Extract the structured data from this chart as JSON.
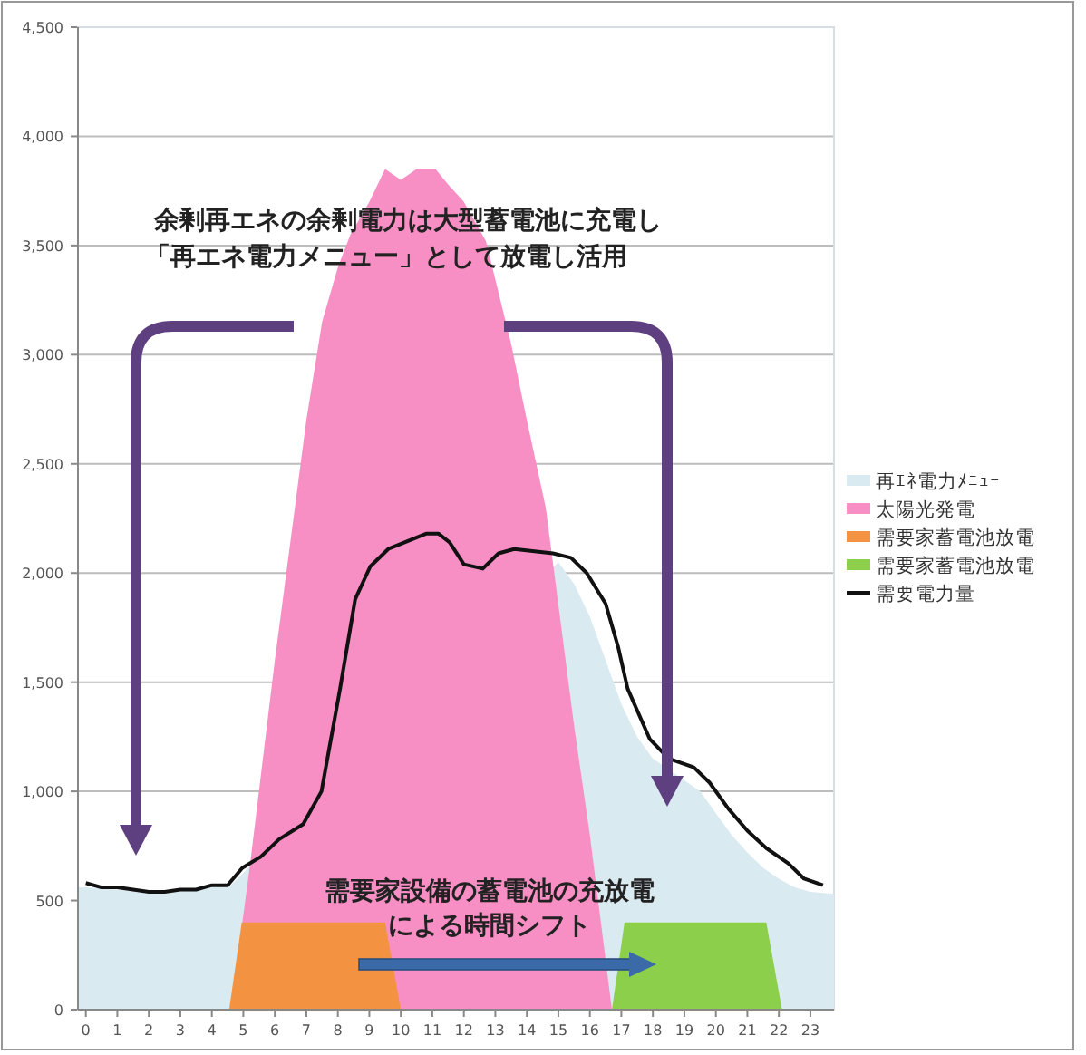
{
  "chart_data": {
    "type": "area",
    "xlim": [
      -0.25,
      23.75
    ],
    "ylim": [
      0,
      4500
    ],
    "xticks": [
      0,
      1,
      2,
      3,
      4,
      5,
      6,
      7,
      8,
      9,
      10,
      11,
      12,
      13,
      14,
      15,
      16,
      17,
      18,
      19,
      20,
      21,
      22,
      23
    ],
    "yticks": [
      0,
      {
        "value": 500,
        "label": "500"
      },
      {
        "value": 1000,
        "label": "1,000"
      },
      {
        "value": 1500,
        "label": "1,500"
      },
      {
        "value": 2000,
        "label": "2,000"
      },
      {
        "value": 2500,
        "label": "2,500"
      },
      {
        "value": 3000,
        "label": "3,000"
      },
      {
        "value": 3500,
        "label": "3,500"
      },
      {
        "value": 4000,
        "label": "4,000"
      },
      {
        "value": 4500,
        "label": "4,500"
      }
    ],
    "grid": "y",
    "legend": "right",
    "series": [
      {
        "name": "再ｴﾈ電力ﾒﾆｭｰ",
        "color": "#daeaf1",
        "x": [
          -0.25,
          0,
          1,
          2,
          3,
          4,
          4.6,
          15,
          15.5,
          16,
          16.5,
          17,
          17.5,
          18,
          18.5,
          19,
          19.5,
          20,
          20.5,
          21,
          21.5,
          22,
          22.5,
          23,
          23.75
        ],
        "values": [
          560,
          560,
          550,
          540,
          550,
          560,
          570,
          2050,
          1950,
          1800,
          1600,
          1400,
          1250,
          1150,
          1100,
          1050,
          1000,
          900,
          800,
          720,
          650,
          600,
          560,
          540,
          530
        ]
      },
      {
        "name": "太陽光発電",
        "color": "#f78fc4",
        "x": [
          4.6,
          5.2,
          6.0,
          6.5,
          7.0,
          7.5,
          8.0,
          8.4,
          9.0,
          9.5,
          10.0,
          10.5,
          11.1,
          11.5,
          12.0,
          12.7,
          13.5,
          14.0,
          14.6,
          15.5,
          16.0,
          16.7
        ],
        "values": [
          0,
          650,
          1600,
          2150,
          2700,
          3150,
          3400,
          3550,
          3700,
          3850,
          3800,
          3850,
          3850,
          3780,
          3700,
          3520,
          3050,
          2700,
          2300,
          1300,
          800,
          0
        ]
      },
      {
        "name": "需要家蓄電池放電",
        "color": "#f39240",
        "x": [
          4.55,
          4.95,
          9.5,
          10.0
        ],
        "values": [
          0,
          400,
          400,
          0
        ]
      },
      {
        "name": "需要家蓄電池放電",
        "color": "#8ccf4a",
        "x": [
          16.7,
          17.1,
          21.6,
          22.1
        ],
        "values": [
          0,
          400,
          400,
          0
        ]
      },
      {
        "name": "需要電力量",
        "type": "line",
        "color": "#111111",
        "x": [
          0,
          0.5,
          1,
          1.5,
          2,
          2.5,
          3,
          3.5,
          4,
          4.5,
          4.97,
          5.55,
          6.13,
          6.9,
          7.48,
          8.07,
          8.55,
          9.03,
          9.6,
          10.8,
          11.2,
          11.55,
          12.0,
          12.6,
          13.1,
          13.6,
          14.83,
          15.4,
          15.9,
          16.5,
          16.9,
          17.2,
          17.9,
          18.5,
          19.3,
          19.8,
          20.4,
          21.0,
          21.6,
          22.3,
          22.8,
          23.4
        ],
        "values": [
          580,
          560,
          560,
          550,
          540,
          540,
          550,
          550,
          570,
          570,
          650,
          700,
          780,
          850,
          1000,
          1470,
          1880,
          2030,
          2110,
          2180,
          2180,
          2140,
          2040,
          2020,
          2090,
          2110,
          2090,
          2070,
          2000,
          1860,
          1660,
          1470,
          1240,
          1150,
          1110,
          1040,
          920,
          820,
          740,
          670,
          600,
          570
        ]
      }
    ],
    "annotations": [
      "余剰再エネの余剰電力は大型蓄電池に充電し",
      "「再エネ電力メニュー」として放電し活用",
      "需要家設備の蓄電池の充放電",
      "による時間シフト"
    ]
  }
}
